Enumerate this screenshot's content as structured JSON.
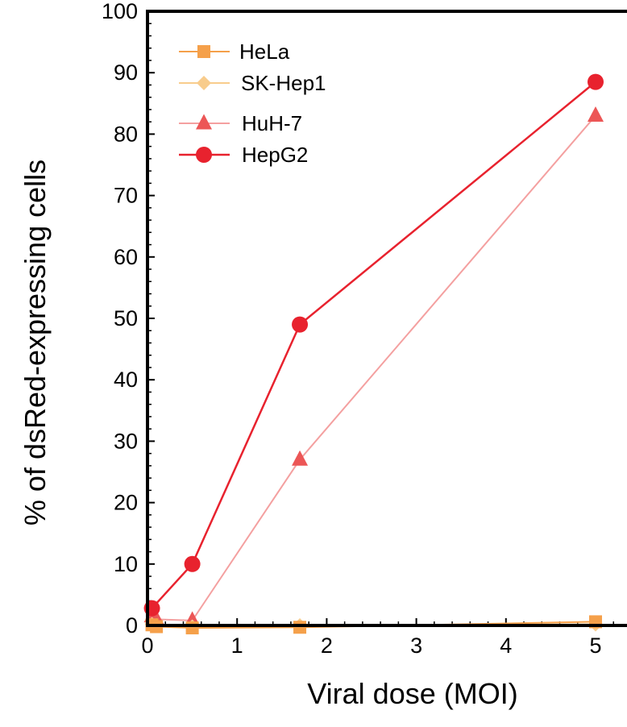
{
  "chart_data": {
    "type": "line",
    "title": "",
    "xlabel": "Viral  dose (MOI)",
    "ylabel": "% of dsRed-expressing cells",
    "xlim": [
      0,
      5.3
    ],
    "ylim": [
      0,
      100
    ],
    "xticks": [
      0,
      1,
      2,
      3,
      4,
      5
    ],
    "yticks": [
      0,
      10,
      20,
      30,
      40,
      50,
      60,
      70,
      80,
      90,
      100
    ],
    "grid": false,
    "legend_position": "top-left",
    "series": [
      {
        "name": "HeLa",
        "marker": "square",
        "color": "#F5A04A",
        "points": [
          [
            0.05,
            0.1
          ],
          [
            0.1,
            -0.2
          ],
          [
            0.5,
            -0.4
          ],
          [
            1.7,
            -0.3
          ],
          [
            5.0,
            0.6
          ]
        ]
      },
      {
        "name": "SK-Hep1",
        "marker": "diamond",
        "color": "#F8CC8C",
        "points": [
          [
            0.05,
            0.2
          ],
          [
            0.1,
            0.0
          ],
          [
            0.5,
            -0.2
          ],
          [
            1.7,
            0.0
          ],
          [
            5.0,
            0.2
          ]
        ]
      },
      {
        "name": "HuH-7",
        "marker": "triangle",
        "color": "#EC5656",
        "line_color": "#F4A0A0",
        "points": [
          [
            0.05,
            1.5
          ],
          [
            0.1,
            1.0
          ],
          [
            0.5,
            0.8
          ],
          [
            1.7,
            27.0
          ],
          [
            5.0,
            83.0
          ]
        ]
      },
      {
        "name": "HepG2",
        "marker": "circle",
        "color": "#E8222E",
        "points": [
          [
            0.05,
            2.8
          ],
          [
            0.5,
            10.0
          ],
          [
            1.7,
            49.0
          ],
          [
            5.0,
            88.5
          ]
        ]
      }
    ]
  }
}
